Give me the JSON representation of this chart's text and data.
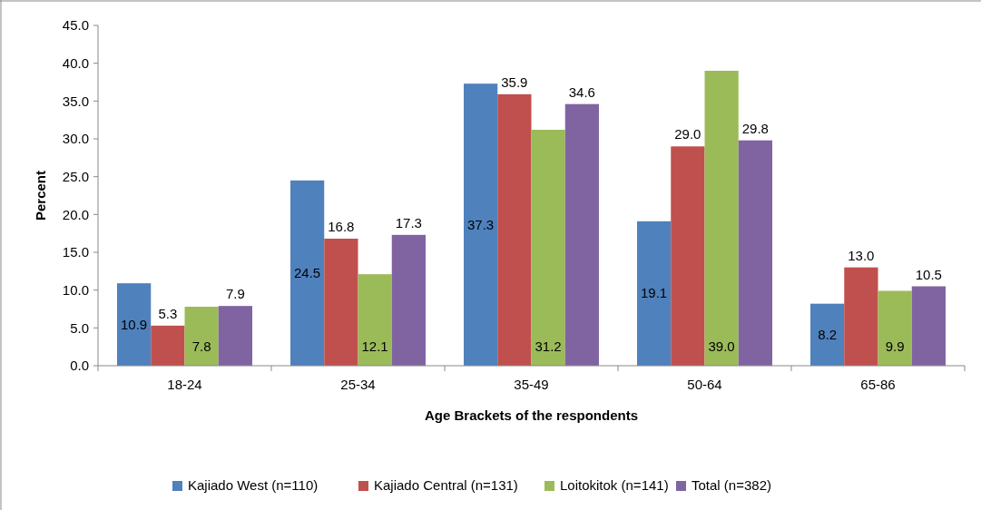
{
  "chart_data": {
    "type": "bar",
    "xlabel": "Age Brackets of the respondents",
    "ylabel": "Percent",
    "categories": [
      "18-24",
      "25-34",
      "35-49",
      "50-64",
      "65-86"
    ],
    "series": [
      {
        "name": "Kajiado West (n=110)",
        "color": "#4f81bd",
        "values": [
          10.9,
          24.5,
          37.3,
          19.1,
          8.2
        ],
        "value_labels": [
          "10.9",
          "24.5",
          "37.3",
          "19.1",
          "8.2"
        ]
      },
      {
        "name": "Kajiado Central (n=131)",
        "color": "#c0504d",
        "values": [
          5.3,
          16.8,
          35.9,
          29.0,
          13.0
        ],
        "value_labels": [
          "5.3",
          "16.8",
          "35.9",
          "29.0",
          "13.0"
        ]
      },
      {
        "name": "Loitokitok (n=141)",
        "color": "#9bbb59",
        "values": [
          7.8,
          12.1,
          31.2,
          39.0,
          9.9
        ],
        "value_labels": [
          "7.8",
          "12.1",
          "31.2",
          "39.0",
          "9.9"
        ]
      },
      {
        "name": "Total (n=382)",
        "color": "#8064a2",
        "values": [
          7.9,
          17.3,
          34.6,
          29.8,
          10.5
        ],
        "value_labels": [
          "7.9",
          "17.3",
          "34.6",
          "29.8",
          "10.5"
        ]
      }
    ],
    "ylim": [
      0,
      45
    ],
    "yticks": [
      {
        "value": 0,
        "label": "0.0"
      },
      {
        "value": 5,
        "label": "5.0"
      },
      {
        "value": 10,
        "label": "10.0"
      },
      {
        "value": 15,
        "label": "15.0"
      },
      {
        "value": 20,
        "label": "20.0"
      },
      {
        "value": 25,
        "label": "25.0"
      },
      {
        "value": 30,
        "label": "30.0"
      },
      {
        "value": 35,
        "label": "35.0"
      },
      {
        "value": 40,
        "label": "40.0"
      },
      {
        "value": 45,
        "label": "45.0"
      }
    ],
    "legend": "bottom"
  }
}
